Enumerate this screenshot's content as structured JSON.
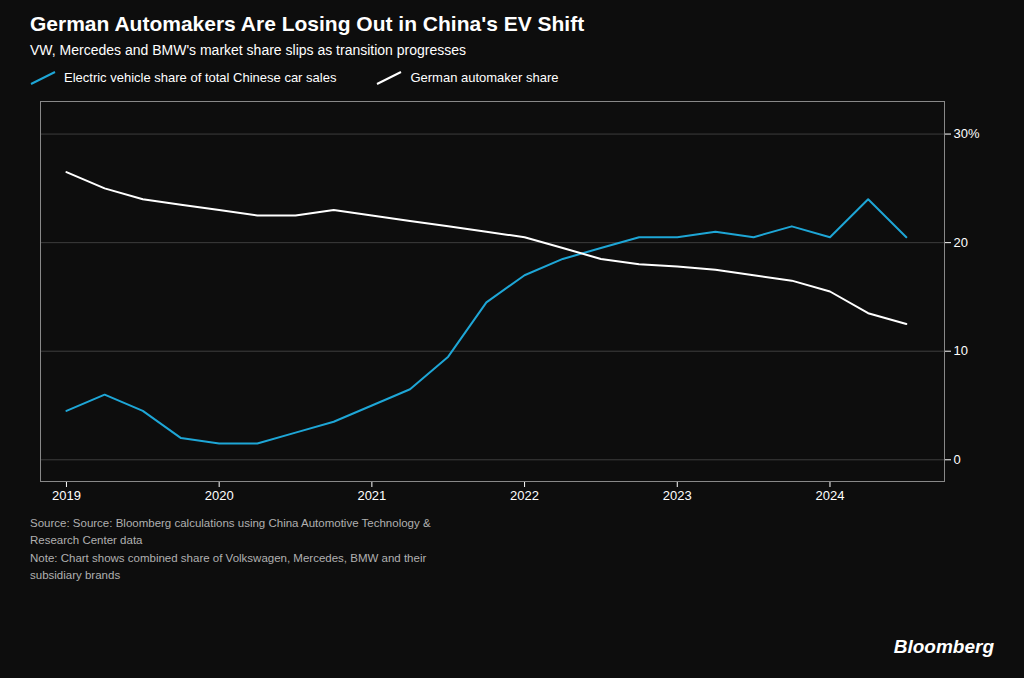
{
  "chart_data": {
    "type": "line",
    "title": "German Automakers Are Losing Out in China's EV Shift",
    "subtitle": "VW, Mercedes and BMW's market share slips as transition progresses",
    "caption": "Source: Source: Bloomberg calculations using China Automotive Technology &\nResearch Center data\nNote: Chart shows combined share of Volkswagen, Mercedes, BMW and their\nsubsidiary brands",
    "annotations": [
      "Bloomberg"
    ],
    "x": [
      2019.0,
      2019.25,
      2019.5,
      2019.75,
      2020.0,
      2020.25,
      2020.5,
      2020.75,
      2021.0,
      2021.25,
      2021.5,
      2021.75,
      2022.0,
      2022.25,
      2022.5,
      2022.75,
      2023.0,
      2023.25,
      2023.5,
      2023.75,
      2024.0,
      2024.25,
      2024.5
    ],
    "xlim": [
      2018.83,
      2024.75
    ],
    "xticks": [
      2019,
      2020,
      2021,
      2022,
      2023,
      2024
    ],
    "ylim": [
      -2,
      33
    ],
    "yticks": [
      0,
      10,
      20,
      {
        "value": 30,
        "label": "30%"
      }
    ],
    "grid": true,
    "legend": "upper left",
    "series": [
      {
        "name": "Electric vehicle share of total Chinese car sales",
        "color": "#1ea6d6",
        "values": [
          4.5,
          6.0,
          4.5,
          2.0,
          1.5,
          1.5,
          2.5,
          3.5,
          5.0,
          6.5,
          9.5,
          14.5,
          17.0,
          18.5,
          19.5,
          20.5,
          20.5,
          21.0,
          20.5,
          21.5,
          20.5,
          24.0,
          20.5
        ]
      },
      {
        "name": "German automaker share",
        "color": "#ffffff",
        "values": [
          26.5,
          25.0,
          24.0,
          23.5,
          23.0,
          22.5,
          22.5,
          23.0,
          22.5,
          22.0,
          21.5,
          21.0,
          20.5,
          19.5,
          18.5,
          18.0,
          17.8,
          17.5,
          17.0,
          16.5,
          15.5,
          13.5,
          12.5
        ]
      }
    ]
  }
}
